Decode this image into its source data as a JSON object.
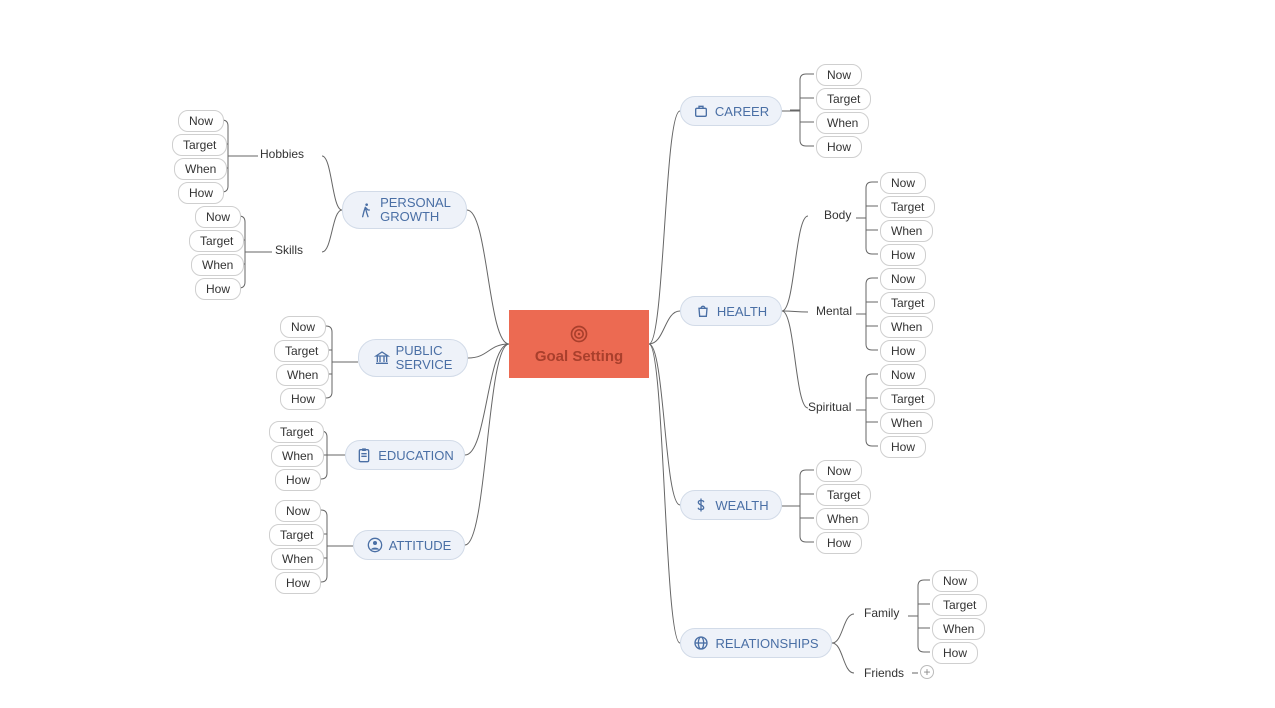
{
  "type": "mindmap",
  "center": {
    "label": "Goal Setting",
    "bg_color": "#ec6a52",
    "text_color": "#a93f2c",
    "icon": "target"
  },
  "primary_style": {
    "bg_color": "#eef2f9",
    "border_color": "#d2dbe8",
    "text_color": "#4a6fa5",
    "border_radius": 18,
    "fontsize": 13
  },
  "leaf_style": {
    "bg_color": "#ffffff",
    "border_color": "#cfcfcf",
    "text_color": "#333333",
    "border_radius": 10,
    "fontsize": 12
  },
  "connector_color": "#666666",
  "background_color": "#ffffff",
  "leaf_set": [
    "Now",
    "Target",
    "When",
    "How"
  ],
  "leaf_set_education": [
    "Target",
    "When",
    "How"
  ],
  "left_branches": [
    {
      "label_line1": "PERSONAL",
      "label_line2": "GROWTH",
      "icon": "walk",
      "children": [
        {
          "label": "Hobbies",
          "leaves": [
            "Now",
            "Target",
            "When",
            "How"
          ]
        },
        {
          "label": "Skills",
          "leaves": [
            "Now",
            "Target",
            "When",
            "How"
          ]
        }
      ]
    },
    {
      "label": "PUBLIC",
      "label_line2": "SERVICE",
      "icon": "bank",
      "leaves": [
        "Now",
        "Target",
        "When",
        "How"
      ]
    },
    {
      "label": "EDUCATION",
      "icon": "clipboard",
      "leaves": [
        "Target",
        "When",
        "How"
      ]
    },
    {
      "label": "ATTITUDE",
      "icon": "person",
      "leaves": [
        "Now",
        "Target",
        "When",
        "How"
      ]
    }
  ],
  "right_branches": [
    {
      "label": "CAREER",
      "icon": "briefcase",
      "leaves": [
        "Now",
        "Target",
        "When",
        "How"
      ]
    },
    {
      "label": "HEALTH",
      "icon": "bag",
      "children": [
        {
          "label": "Body",
          "leaves": [
            "Now",
            "Target",
            "When",
            "How"
          ]
        },
        {
          "label": "Mental",
          "leaves": [
            "Now",
            "Target",
            "When",
            "How"
          ]
        },
        {
          "label": "Spiritual",
          "leaves": [
            "Now",
            "Target",
            "When",
            "How"
          ]
        }
      ]
    },
    {
      "label": "WEALTH",
      "icon": "dollar",
      "leaves": [
        "Now",
        "Target",
        "When",
        "How"
      ]
    },
    {
      "label": "RELATIONSHIPS",
      "icon": "globe",
      "children": [
        {
          "label": "Family",
          "leaves": [
            "Now",
            "Target",
            "When",
            "How"
          ]
        },
        {
          "label": "Friends",
          "collapsed": true
        }
      ]
    }
  ]
}
